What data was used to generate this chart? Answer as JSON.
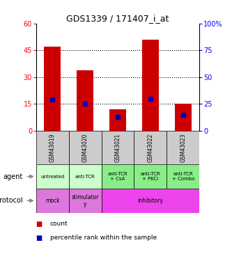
{
  "title": "GDS1339 / 171407_i_at",
  "samples": [
    "GSM43019",
    "GSM43020",
    "GSM43021",
    "GSM43022",
    "GSM43023"
  ],
  "count_values": [
    47,
    34,
    12,
    51,
    15
  ],
  "percentile_values": [
    29,
    25,
    13,
    30,
    15
  ],
  "ylim_left": [
    0,
    60
  ],
  "ylim_right": [
    0,
    100
  ],
  "yticks_left": [
    0,
    15,
    30,
    45,
    60
  ],
  "yticks_right": [
    0,
    25,
    50,
    75,
    100
  ],
  "bar_color": "#cc0000",
  "percentile_color": "#0000bb",
  "agent_labels": [
    "untreated",
    "anti-TCR",
    "anti-TCR\n+ CsA",
    "anti-TCR\n+ PKCi",
    "anti-TCR\n+ Combo"
  ],
  "agent_bg_light": "#ccffcc",
  "agent_bg_dark": "#88ee88",
  "agent_bg_colors_idx": [
    0,
    0,
    1,
    1,
    1
  ],
  "sample_bg_color": "#cccccc",
  "proto_mock_color": "#ee88ee",
  "proto_stim_color": "#ee88ee",
  "proto_inhib_color": "#ee44ee",
  "legend_count_color": "#cc0000",
  "legend_pct_color": "#0000bb",
  "row_label_agent": "agent",
  "row_label_protocol": "protocol"
}
